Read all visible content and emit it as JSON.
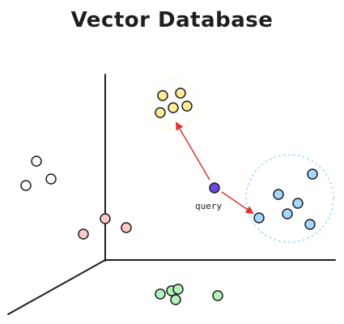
{
  "title": "Vector Database",
  "query": {
    "label": "query",
    "color": "#7048e8"
  },
  "clusters": [
    {
      "name": "yellow-cluster",
      "fill": "#ffec99",
      "stroke": "#1e1e1e",
      "ring": "#fff3bf"
    },
    {
      "name": "blue-cluster",
      "fill": "#a5d8ff",
      "stroke": "#1e1e1e",
      "ring": "#a5d8ff"
    },
    {
      "name": "white-cluster",
      "fill": "#ffffff",
      "stroke": "#1e1e1e"
    },
    {
      "name": "pink-cluster",
      "fill": "#ffc9c9",
      "stroke": "#1e1e1e"
    },
    {
      "name": "green-cluster",
      "fill": "#b2f2bb",
      "stroke": "#1e1e1e"
    }
  ],
  "colors": {
    "axis": "#1e1e1e",
    "arrow": "#e03131"
  }
}
